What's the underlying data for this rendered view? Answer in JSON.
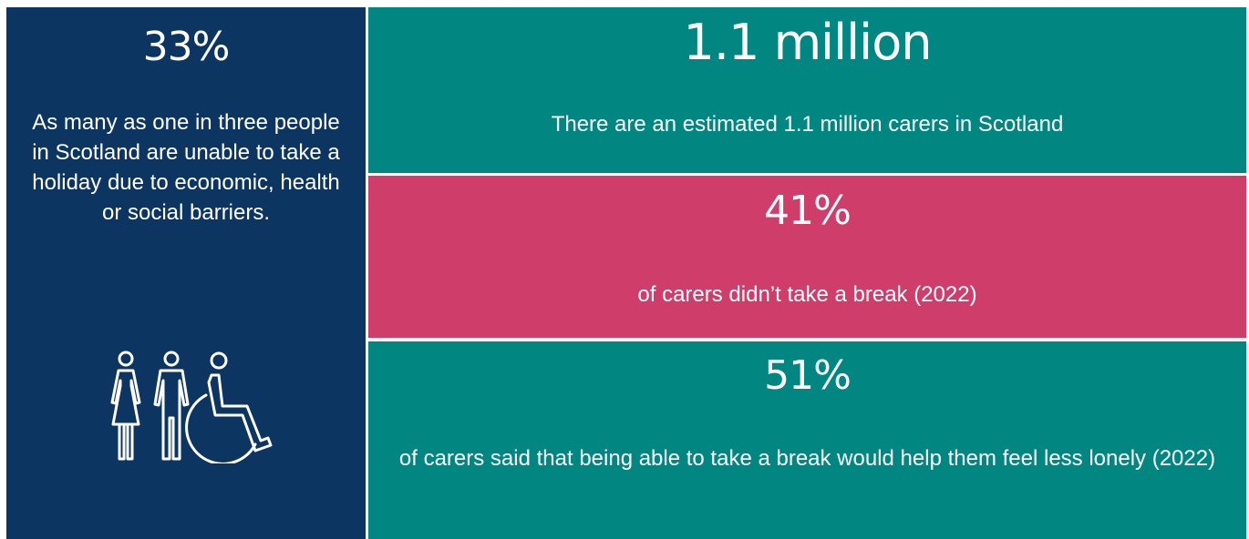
{
  "left_panel": {
    "stat": "33%",
    "description": "As many as one in three people in Scotland are unable to take a holiday due to economic, health or social barriers.",
    "icon": "people-accessibility-icon",
    "background": "#0d3562"
  },
  "top_panel": {
    "stat": "1.1 million",
    "description": "There are an estimated 1.1 million carers in Scotland",
    "background": "#018681"
  },
  "middle_panel": {
    "stat": "41%",
    "description": "of carers didn’t take a break (2022)",
    "background": "#cf3e6b"
  },
  "bottom_panel": {
    "stat": "51%",
    "description": "of carers said that being able to take a break would help them feel less lonely (2022)",
    "background": "#018681"
  },
  "text_color": "#ffffff"
}
